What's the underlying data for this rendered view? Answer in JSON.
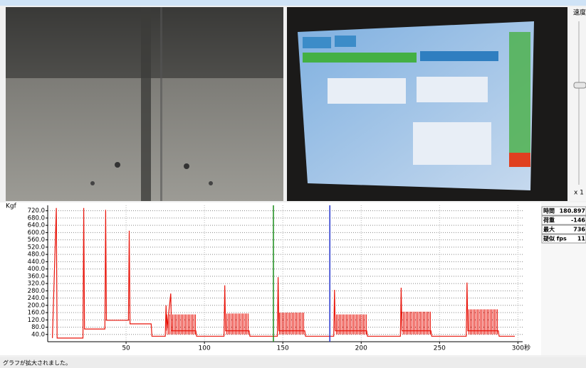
{
  "chart_data": {
    "type": "line",
    "y_label": "Kgf",
    "x_label": "秒",
    "xlim": [
      0,
      303
    ],
    "ylim": [
      0,
      750
    ],
    "xticks": [
      50,
      100,
      150,
      200,
      250,
      300
    ],
    "yticks": [
      {
        "value": 40,
        "label": "40.0"
      },
      {
        "value": 80,
        "label": "80.0"
      },
      {
        "value": 120,
        "label": "120.0"
      },
      {
        "value": 160,
        "label": "160.0"
      },
      {
        "value": 200,
        "label": "200.0"
      },
      {
        "value": 240,
        "label": "240.0"
      },
      {
        "value": 280,
        "label": "280.0"
      },
      {
        "value": 320,
        "label": "320.0"
      },
      {
        "value": 360,
        "label": "360.0"
      },
      {
        "value": 400,
        "label": "400.0"
      },
      {
        "value": 440,
        "label": "440.0"
      },
      {
        "value": 480,
        "label": "480.0"
      },
      {
        "value": 520,
        "label": "520.0"
      },
      {
        "value": 560,
        "label": "560.0"
      },
      {
        "value": 600,
        "label": "600.0"
      },
      {
        "value": 640,
        "label": "640.0"
      },
      {
        "value": 680,
        "label": "680.0"
      },
      {
        "value": 720,
        "label": "720.0"
      }
    ],
    "grid": true,
    "series": [
      {
        "color": "#e8150b",
        "x": [
          3,
          5.5,
          6,
          22.5,
          23,
          23.5,
          36.5,
          37,
          37.5,
          51.5,
          52,
          52.5,
          66,
          66.5,
          75,
          75.5,
          76,
          78.5,
          79,
          94.5,
          95,
          112.5,
          113,
          113.5,
          128.5,
          129,
          146.5,
          147,
          147.5,
          164,
          164.5,
          182.5,
          183,
          183.5,
          203.5,
          204,
          225,
          225.5,
          226,
          244.5,
          245,
          267,
          267.5,
          268,
          287.5,
          288,
          298
        ],
        "values": [
          20,
          735,
          20,
          20,
          735,
          70,
          70,
          725,
          118,
          118,
          610,
          98,
          98,
          30,
          30,
          200,
          60,
          265,
          60,
          60,
          30,
          30,
          310,
          60,
          60,
          30,
          30,
          355,
          60,
          60,
          30,
          30,
          285,
          60,
          60,
          30,
          30,
          297,
          60,
          60,
          30,
          30,
          325,
          60,
          60,
          30,
          30
        ]
      }
    ],
    "bands": [
      {
        "start": 76,
        "end": 94.5,
        "low": 40,
        "high": 150
      },
      {
        "start": 113.5,
        "end": 128.5,
        "low": 40,
        "high": 155
      },
      {
        "start": 147.5,
        "end": 164,
        "low": 40,
        "high": 160
      },
      {
        "start": 183.5,
        "end": 203.5,
        "low": 40,
        "high": 150
      },
      {
        "start": 226,
        "end": 244.5,
        "low": 40,
        "high": 165
      },
      {
        "start": 268,
        "end": 287.5,
        "low": 40,
        "high": 178
      }
    ],
    "markers": [
      {
        "x": 144,
        "color": "#1a8c1a"
      },
      {
        "x": 180,
        "color": "#2233cc"
      }
    ]
  },
  "side_panel": {
    "rows": [
      [
        "時間",
        "180.897"
      ],
      [
        "荷重",
        "-146"
      ],
      [
        "最大",
        "736"
      ],
      [
        "疑似 fps",
        "11"
      ]
    ]
  },
  "speed": {
    "label": "速度",
    "multiplier": "x 1"
  },
  "status_bar": "グラフが拡大されました。"
}
